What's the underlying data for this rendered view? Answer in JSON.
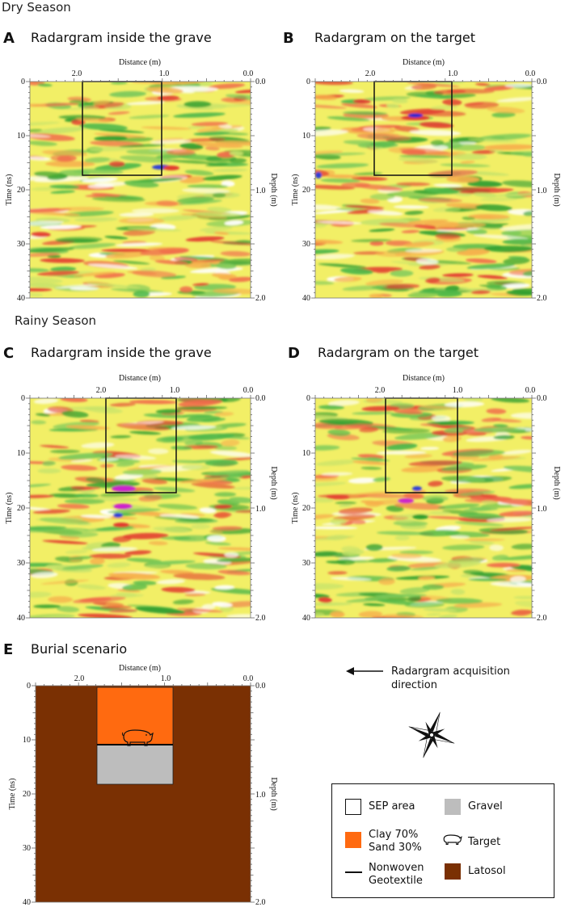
{
  "seasons": {
    "dry": "Dry Season",
    "rainy": "Rainy Season"
  },
  "panels": [
    {
      "letter": "A",
      "title": "Radargram inside the grave"
    },
    {
      "letter": "B",
      "title": "Radargram on the target"
    },
    {
      "letter": "C",
      "title": "Radargram inside the grave"
    },
    {
      "letter": "D",
      "title": "Radargram on the target"
    },
    {
      "letter": "E",
      "title": "Burial scenario"
    }
  ],
  "axes": {
    "distance_label": "Distance (m)",
    "time_label": "Time (ns)",
    "depth_label": "Depth (m)",
    "distance_ticks": [
      "2.0",
      "1.0",
      "0.0"
    ],
    "time_ticks": [
      "0",
      "10",
      "20",
      "30",
      "40"
    ],
    "depth_ticks": [
      "0.0",
      "1.0",
      "2.0"
    ]
  },
  "acquisition_note": "Radargram acquisition direction",
  "legend": {
    "sep_area": "SEP area",
    "clay_sand": "Clay 70%\nSand 30%",
    "clay_line1": "Clay 70%",
    "clay_line2": "Sand 30%",
    "geotextile_line1": "Nonwoven",
    "geotextile_line2": "Geotextile",
    "gravel": "Gravel",
    "target": "Target",
    "latosol": "Latosol"
  },
  "colors": {
    "clay_sand": "#ff6a10",
    "gravel": "#bdbdbd",
    "latosol": "#7a3003",
    "radar_bg": "#f2ef66"
  }
}
